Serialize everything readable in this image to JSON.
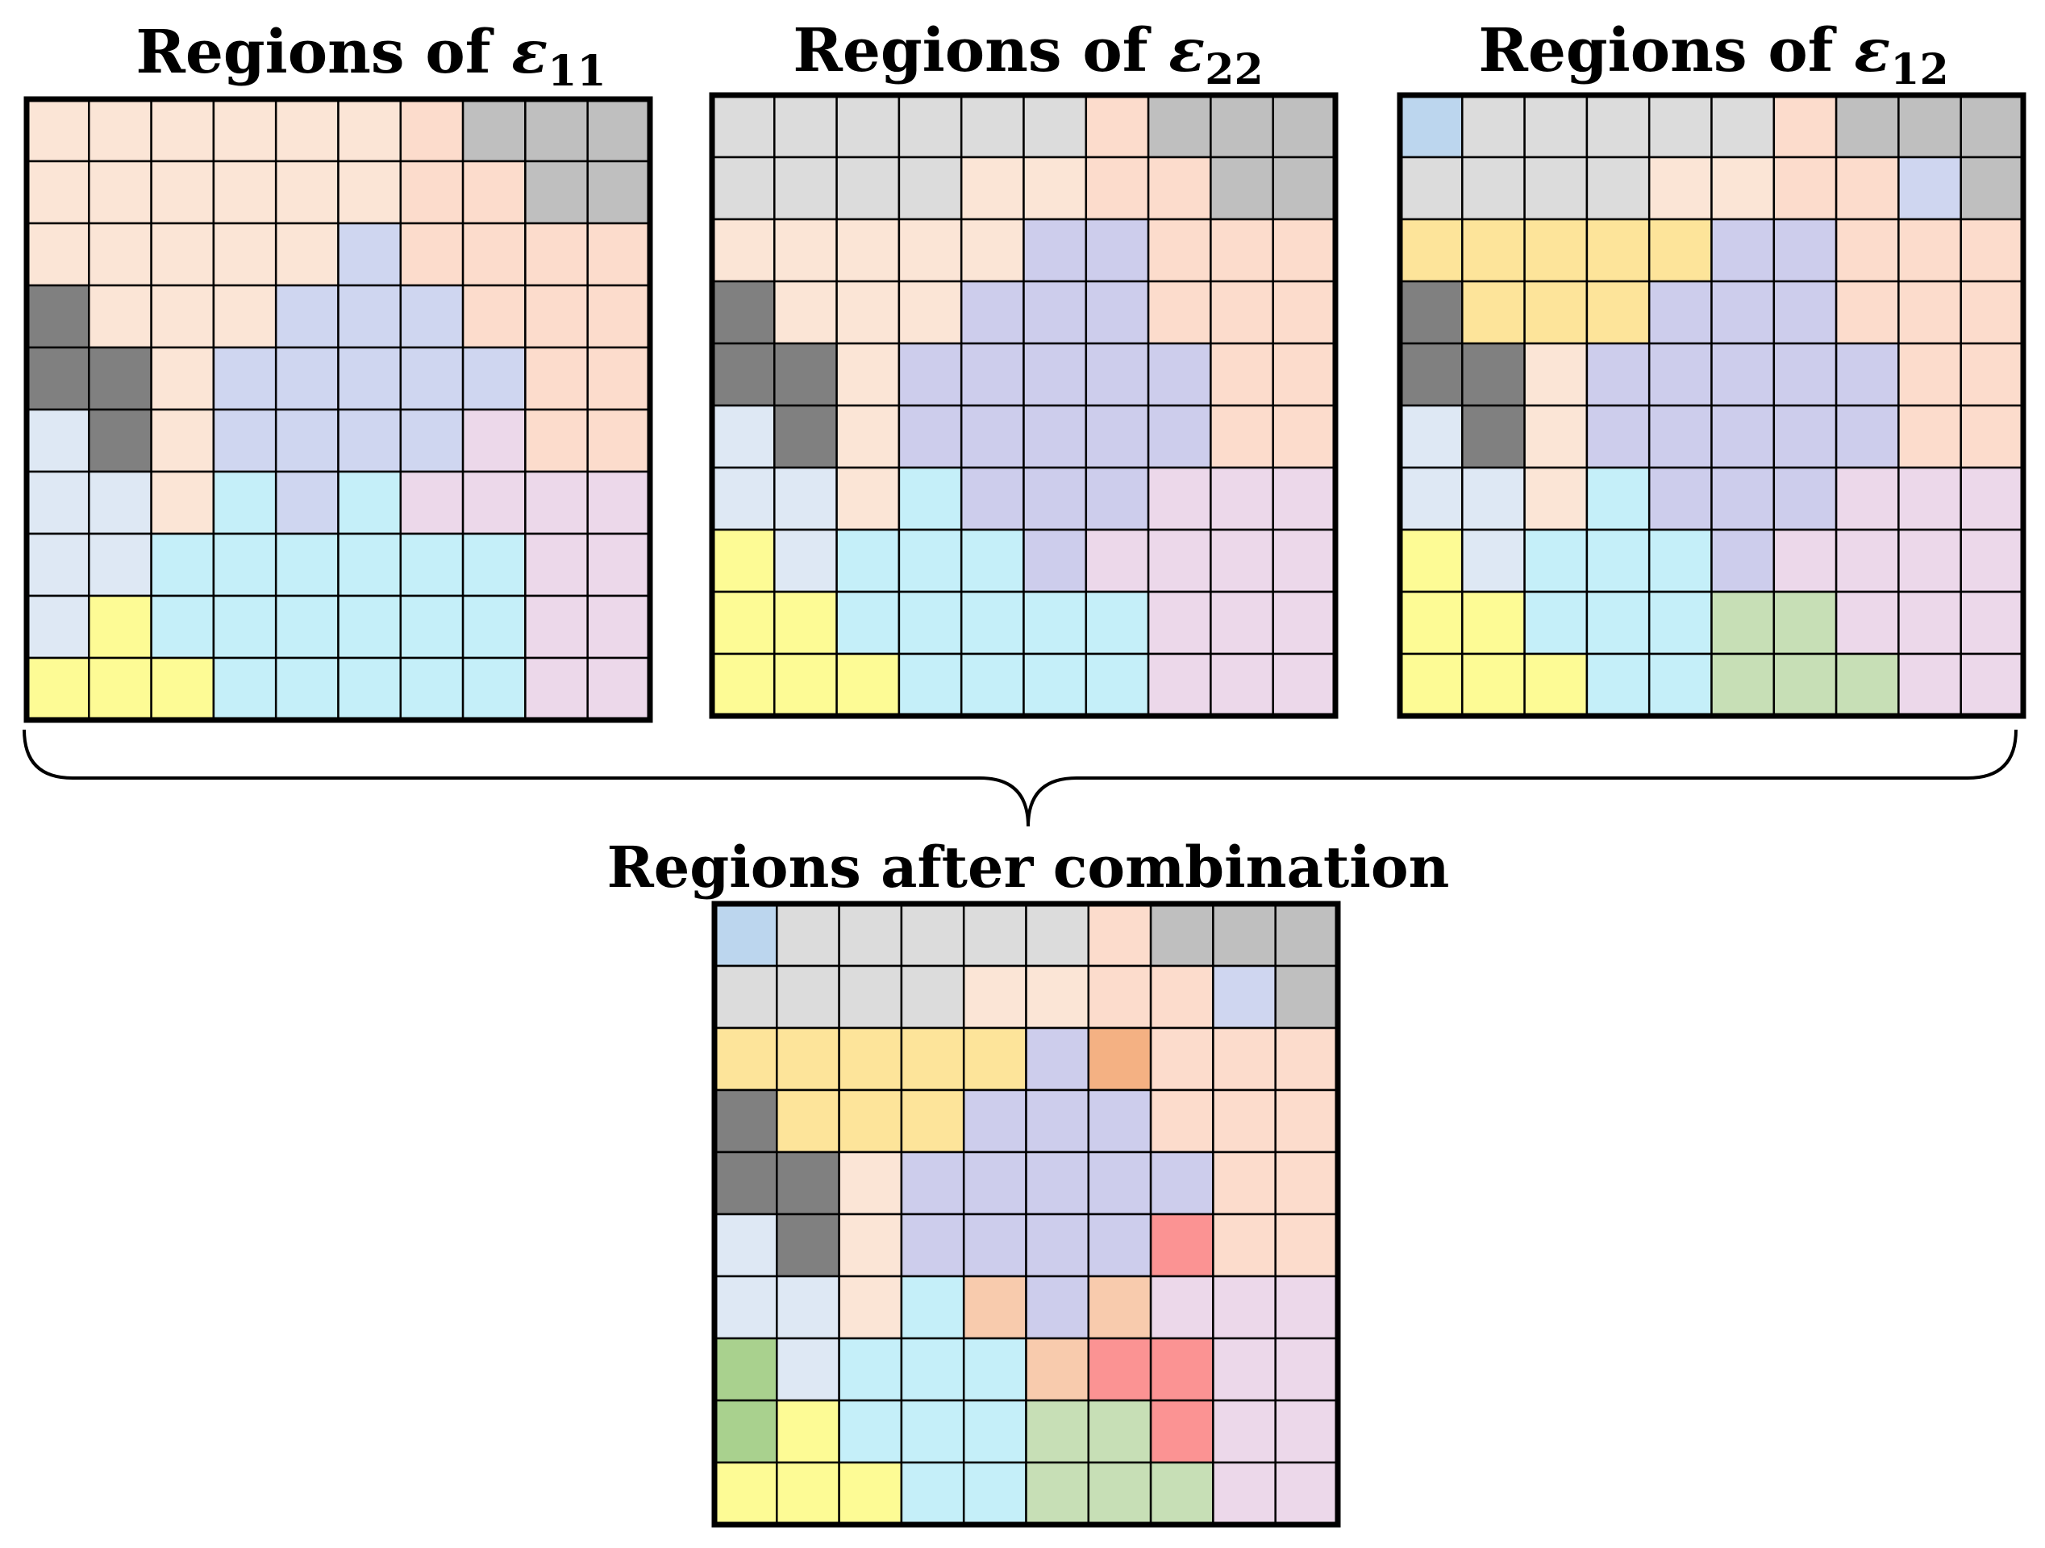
{
  "palette": {
    "A": "#fbe5d6",
    "B": "#fcdccc",
    "G": "#dcdcdc",
    "D": "#bfbfbf",
    "K": "#808080",
    "E": "#dee8f4",
    "L": "#cfd6f0",
    "V": "#cdcdec",
    "C": "#c5eff9",
    "P": "#ecd8ea",
    "Y": "#fdfb95",
    "O": "#fde49a",
    "S": "#bcd6ee",
    "N": "#c7dfb6",
    "M": "#a9d18e",
    "T": "#f4b183",
    "H": "#f8cbad",
    "R": "#fb9393"
  },
  "panels": [
    {
      "title_prefix": "Regions of ",
      "symbol": "ε",
      "subscript": "11",
      "grid": [
        "AAAAAABDDD",
        "AAAAAABBDD",
        "AAAAALBBBB",
        "KAAALLLBBB",
        "KKALLLLLBB",
        "EKALLLLPBB",
        "EEACLCPPPP",
        "EECCCCCCPP",
        "EYCCCCCCPP",
        "YYYCCCCCPP"
      ]
    },
    {
      "title_prefix": "Regions of ",
      "symbol": "ε",
      "subscript": "22",
      "grid": [
        "GGGGGGBDDD",
        "GGGGAABBDD",
        "AAAAAVVBBB",
        "KAAAVVVBBB",
        "KKAVVVVVBB",
        "EKAVVVVVBB",
        "EEACVVVPPP",
        "YECCCVPPPP",
        "YYCCCCCPPP",
        "YYYCCCCPPP"
      ]
    },
    {
      "title_prefix": "Regions of ",
      "symbol": "ε",
      "subscript": "12",
      "grid": [
        "SGGGGGBDDD",
        "GGGGAABBLD",
        "OOOOOVVBBB",
        "KOOOVVVBBB",
        "KKAVVVVVBB",
        "EKAVVVVVBB",
        "EEACVVVPPP",
        "YECCCVPPPP",
        "YYCCCNNPPP",
        "YYYCCNNNPP"
      ]
    },
    {
      "title": "Regions after combination",
      "grid": [
        "SGGGGGBDDD",
        "GGGGAABBLD",
        "OOOOOVTBBB",
        "KOOOVVVBBB",
        "KKAVVVVVBB",
        "EKAVVVVRBB",
        "EEACHVHPPP",
        "MECCCHRRPP",
        "MYCCCNNRPP",
        "YYYCCNNNPP"
      ]
    }
  ]
}
